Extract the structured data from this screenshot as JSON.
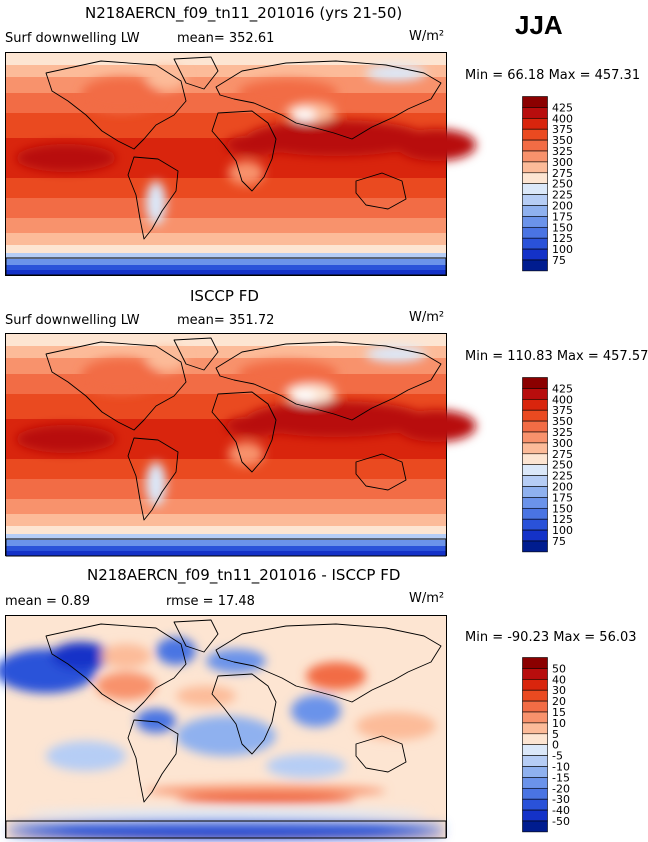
{
  "season": "JJA",
  "panels": [
    {
      "title": "N218AERCN_f09_tn11_201016 (yrs 21-50)",
      "left_label": "Surf downwelling LW",
      "stat1": "mean= 352.61",
      "stat2": "",
      "units": "W/m²",
      "minmax": "Min =  66.18 Max = 457.31",
      "map_label": "Model surface downwelling longwave map (JJA)"
    },
    {
      "title": "ISCCP FD",
      "left_label": "Surf downwelling LW",
      "stat1": "mean= 351.72",
      "stat2": "",
      "units": "W/m²",
      "minmax": "Min = 110.83 Max = 457.57",
      "map_label": "ISCCP FD observed surface downwelling longwave map (JJA)"
    },
    {
      "title": "N218AERCN_f09_tn11_201016 - ISCCP FD",
      "left_label": "mean =   0.89",
      "stat1": "",
      "stat2": "rmse =  17.48",
      "units": "W/m²",
      "minmax": "Min = -90.23 Max =  56.03",
      "map_label": "Model minus ISCCP FD difference map (JJA)"
    }
  ],
  "chart_data": [
    {
      "type": "heatmap",
      "title": "N218AERCN_f09_tn11_201016 (yrs 21-50)",
      "variable": "Surf downwelling LW",
      "units": "W/m2",
      "mean": 352.61,
      "min": 66.18,
      "max": 457.31,
      "colorbar_levels": [
        425,
        400,
        375,
        350,
        325,
        300,
        275,
        250,
        225,
        200,
        175,
        150,
        125,
        100,
        75
      ],
      "colorbar_colors": [
        "#8b0000",
        "#b80d0d",
        "#d9250d",
        "#ea4a20",
        "#f26c45",
        "#f8926c",
        "#fcbb99",
        "#fde5d2",
        "#dbe8f9",
        "#b6cdf5",
        "#8fb1ef",
        "#6b93ea",
        "#4a74e3",
        "#2a52d9",
        "#1432c8",
        "#001c8f"
      ]
    },
    {
      "type": "heatmap",
      "title": "ISCCP FD",
      "variable": "Surf downwelling LW",
      "units": "W/m2",
      "mean": 351.72,
      "min": 110.83,
      "max": 457.57,
      "colorbar_levels": [
        425,
        400,
        375,
        350,
        325,
        300,
        275,
        250,
        225,
        200,
        175,
        150,
        125,
        100,
        75
      ],
      "colorbar_colors": [
        "#8b0000",
        "#b80d0d",
        "#d9250d",
        "#ea4a20",
        "#f26c45",
        "#f8926c",
        "#fcbb99",
        "#fde5d2",
        "#dbe8f9",
        "#b6cdf5",
        "#8fb1ef",
        "#6b93ea",
        "#4a74e3",
        "#2a52d9",
        "#1432c8",
        "#001c8f"
      ]
    },
    {
      "type": "heatmap",
      "title": "N218AERCN_f09_tn11_201016 - ISCCP FD",
      "units": "W/m2",
      "mean": 0.89,
      "rmse": 17.48,
      "min": -90.23,
      "max": 56.03,
      "colorbar_levels": [
        50,
        40,
        30,
        20,
        15,
        10,
        5,
        0,
        -5,
        -10,
        -15,
        -20,
        -30,
        -40,
        -50
      ],
      "colorbar_colors": [
        "#8b0000",
        "#b80d0d",
        "#d9250d",
        "#ea4a20",
        "#f26c45",
        "#f8926c",
        "#fcbb99",
        "#fde5d2",
        "#dbe8f9",
        "#b6cdf5",
        "#8fb1ef",
        "#6b93ea",
        "#4a74e3",
        "#2a52d9",
        "#1432c8",
        "#001c8f"
      ]
    }
  ]
}
